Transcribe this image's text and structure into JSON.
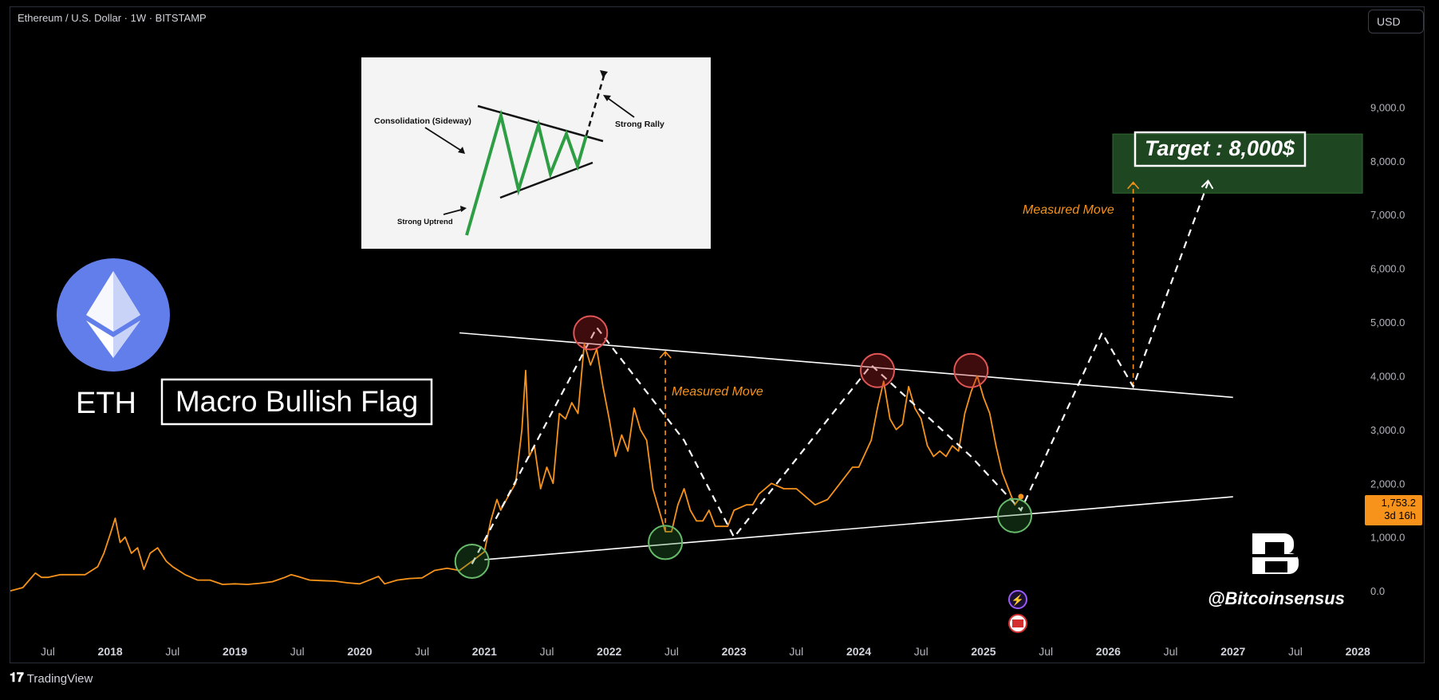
{
  "header": {
    "symbol": "Ethereum / U.S. Dollar · 1W · BITSTAMP",
    "currency_button": "USD"
  },
  "footer": {
    "brand": "TradingView"
  },
  "chart_data": {
    "type": "line",
    "title": "",
    "xlabel": "",
    "ylabel": "",
    "ylim": [
      -800,
      10400
    ],
    "y_ticks": [
      "0.0",
      "1,000.0",
      "2,000.0",
      "3,000.0",
      "4,000.0",
      "5,000.0",
      "6,000.0",
      "7,000.0",
      "8,000.0",
      "9,000.0"
    ],
    "y_tick_values": [
      0,
      1000,
      2000,
      3000,
      4000,
      5000,
      6000,
      7000,
      8000,
      9000
    ],
    "x_ticks": [
      "Jul",
      "2018",
      "Jul",
      "2019",
      "Jul",
      "2020",
      "Jul",
      "2021",
      "Jul",
      "2022",
      "Jul",
      "2023",
      "Jul",
      "2024",
      "Jul",
      "2025",
      "Jul",
      "2026",
      "Jul",
      "2027",
      "Jul",
      "2028"
    ],
    "x_tick_values": [
      2017.5,
      2018.0,
      2018.5,
      2019.0,
      2019.5,
      2020.0,
      2020.5,
      2021.0,
      2021.5,
      2022.0,
      2022.5,
      2023.0,
      2023.5,
      2024.0,
      2024.5,
      2025.0,
      2025.5,
      2026.0,
      2026.5,
      2027.0,
      2027.5,
      2028.0
    ],
    "xlim": [
      2017.2,
      2028.05
    ],
    "series": [
      {
        "color": "#f7931a",
        "points": [
          [
            2017.2,
            0
          ],
          [
            2017.3,
            60
          ],
          [
            2017.4,
            330
          ],
          [
            2017.45,
            250
          ],
          [
            2017.5,
            250
          ],
          [
            2017.6,
            300
          ],
          [
            2017.7,
            300
          ],
          [
            2017.8,
            300
          ],
          [
            2017.9,
            450
          ],
          [
            2017.95,
            700
          ],
          [
            2018.0,
            1050
          ],
          [
            2018.04,
            1350
          ],
          [
            2018.08,
            900
          ],
          [
            2018.12,
            1000
          ],
          [
            2018.17,
            700
          ],
          [
            2018.22,
            800
          ],
          [
            2018.27,
            400
          ],
          [
            2018.32,
            700
          ],
          [
            2018.38,
            800
          ],
          [
            2018.45,
            550
          ],
          [
            2018.5,
            450
          ],
          [
            2018.6,
            300
          ],
          [
            2018.7,
            200
          ],
          [
            2018.8,
            200
          ],
          [
            2018.9,
            120
          ],
          [
            2019.0,
            130
          ],
          [
            2019.1,
            120
          ],
          [
            2019.2,
            140
          ],
          [
            2019.3,
            170
          ],
          [
            2019.4,
            250
          ],
          [
            2019.45,
            300
          ],
          [
            2019.5,
            270
          ],
          [
            2019.6,
            200
          ],
          [
            2019.7,
            190
          ],
          [
            2019.8,
            180
          ],
          [
            2019.9,
            150
          ],
          [
            2020.0,
            130
          ],
          [
            2020.1,
            220
          ],
          [
            2020.15,
            270
          ],
          [
            2020.2,
            130
          ],
          [
            2020.3,
            200
          ],
          [
            2020.4,
            230
          ],
          [
            2020.5,
            240
          ],
          [
            2020.6,
            380
          ],
          [
            2020.7,
            420
          ],
          [
            2020.8,
            380
          ],
          [
            2020.9,
            550
          ],
          [
            2021.0,
            730
          ],
          [
            2021.05,
            1300
          ],
          [
            2021.1,
            1700
          ],
          [
            2021.13,
            1500
          ],
          [
            2021.2,
            1800
          ],
          [
            2021.25,
            2000
          ],
          [
            2021.3,
            3000
          ],
          [
            2021.33,
            4100
          ],
          [
            2021.36,
            2500
          ],
          [
            2021.4,
            2700
          ],
          [
            2021.45,
            1900
          ],
          [
            2021.5,
            2300
          ],
          [
            2021.55,
            2000
          ],
          [
            2021.6,
            3300
          ],
          [
            2021.65,
            3200
          ],
          [
            2021.7,
            3500
          ],
          [
            2021.75,
            3300
          ],
          [
            2021.8,
            4600
          ],
          [
            2021.85,
            4200
          ],
          [
            2021.9,
            4500
          ],
          [
            2021.95,
            3800
          ],
          [
            2022.0,
            3200
          ],
          [
            2022.05,
            2500
          ],
          [
            2022.1,
            2900
          ],
          [
            2022.15,
            2600
          ],
          [
            2022.2,
            3400
          ],
          [
            2022.25,
            3000
          ],
          [
            2022.3,
            2800
          ],
          [
            2022.35,
            1900
          ],
          [
            2022.4,
            1500
          ],
          [
            2022.45,
            1100
          ],
          [
            2022.5,
            1100
          ],
          [
            2022.55,
            1600
          ],
          [
            2022.6,
            1900
          ],
          [
            2022.65,
            1500
          ],
          [
            2022.7,
            1300
          ],
          [
            2022.75,
            1300
          ],
          [
            2022.8,
            1500
          ],
          [
            2022.85,
            1200
          ],
          [
            2022.9,
            1200
          ],
          [
            2022.95,
            1200
          ],
          [
            2023.0,
            1500
          ],
          [
            2023.1,
            1600
          ],
          [
            2023.15,
            1600
          ],
          [
            2023.2,
            1800
          ],
          [
            2023.3,
            2000
          ],
          [
            2023.4,
            1900
          ],
          [
            2023.5,
            1900
          ],
          [
            2023.55,
            1800
          ],
          [
            2023.65,
            1600
          ],
          [
            2023.75,
            1700
          ],
          [
            2023.85,
            2000
          ],
          [
            2023.95,
            2300
          ],
          [
            2024.0,
            2300
          ],
          [
            2024.1,
            2800
          ],
          [
            2024.15,
            3400
          ],
          [
            2024.2,
            3900
          ],
          [
            2024.25,
            3200
          ],
          [
            2024.3,
            3000
          ],
          [
            2024.35,
            3100
          ],
          [
            2024.4,
            3800
          ],
          [
            2024.45,
            3400
          ],
          [
            2024.5,
            3200
          ],
          [
            2024.55,
            2700
          ],
          [
            2024.6,
            2500
          ],
          [
            2024.65,
            2600
          ],
          [
            2024.7,
            2500
          ],
          [
            2024.75,
            2700
          ],
          [
            2024.8,
            2600
          ],
          [
            2024.85,
            3300
          ],
          [
            2024.9,
            3700
          ],
          [
            2024.95,
            4000
          ],
          [
            2025.0,
            3600
          ],
          [
            2025.05,
            3300
          ],
          [
            2025.1,
            2700
          ],
          [
            2025.15,
            2200
          ],
          [
            2025.2,
            1900
          ],
          [
            2025.25,
            1600
          ],
          [
            2025.3,
            1753.2
          ]
        ]
      }
    ],
    "overlays": {
      "trendline_upper": [
        [
          2020.8,
          4800
        ],
        [
          2027.0,
          3600
        ]
      ],
      "trendline_lower": [
        [
          2021.0,
          580
        ],
        [
          2027.0,
          1750
        ]
      ],
      "projection_dashed": [
        [
          2020.9,
          500
        ],
        [
          2021.9,
          4900
        ],
        [
          2022.6,
          2800
        ],
        [
          2023.0,
          1000
        ],
        [
          2024.1,
          4200
        ],
        [
          2024.9,
          2500
        ],
        [
          2025.3,
          1500
        ],
        [
          2025.95,
          4800
        ],
        [
          2026.2,
          3800
        ],
        [
          2026.8,
          7600
        ]
      ],
      "target_zone": [
        7400,
        8500
      ],
      "red_circles": [
        [
          2021.85,
          4800
        ],
        [
          2024.15,
          4100
        ],
        [
          2024.9,
          4100
        ]
      ],
      "green_circles": [
        [
          2020.9,
          550
        ],
        [
          2022.45,
          900
        ],
        [
          2025.25,
          1400
        ]
      ],
      "measured_move_1": [
        [
          2022.45,
          1100
        ],
        [
          2022.45,
          4450
        ]
      ],
      "measured_move_2": [
        [
          2026.2,
          3800
        ],
        [
          2026.2,
          7600
        ]
      ]
    },
    "last_price": "1,753.2",
    "countdown": "3d 16h",
    "annotations": {
      "target": "Target : 8,000$",
      "measured_move_1": "Measured Move",
      "measured_move_2": "Measured Move",
      "asset_label": "ETH",
      "pattern_label": "Macro Bullish Flag",
      "handle": "@Bitcoinsensus"
    },
    "inset": {
      "labels": {
        "consolidation": "Consolidation (Sideway)",
        "strong_rally": "Strong Rally",
        "strong_uptrend": "Strong Uptrend"
      }
    },
    "colors": {
      "price": "#f7931a",
      "trendline": "#ffffff",
      "target_zone": "#1e4620",
      "red_circle": "#b22222",
      "green_circle": "#2e7d32"
    }
  }
}
